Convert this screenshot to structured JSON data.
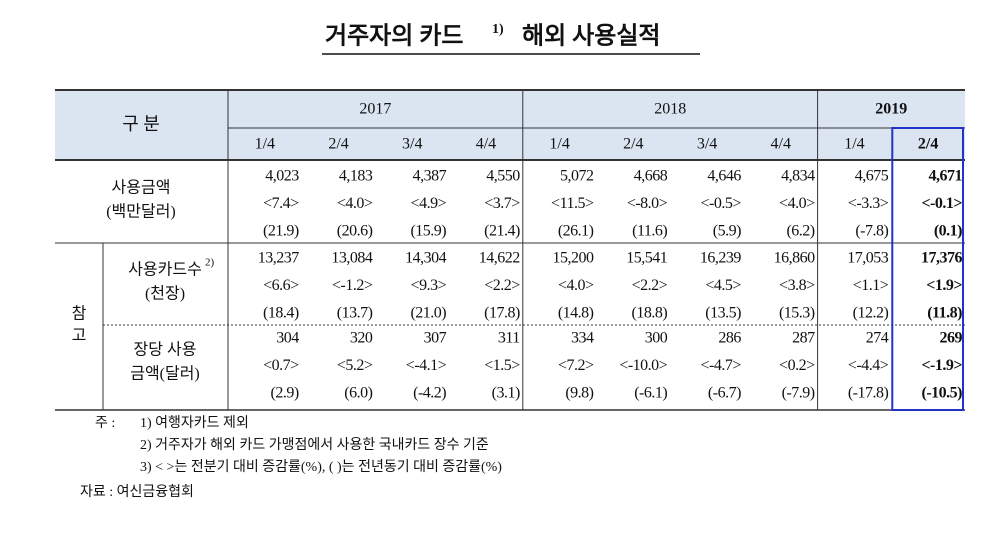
{
  "header": {
    "title": "거주자의 카드",
    "title_sup": "1)",
    "title_rest": "해외 사용실적"
  },
  "table": {
    "corner": "구 분",
    "years": [
      "2017",
      "2018",
      "2019"
    ],
    "quarters": [
      "1/4",
      "2/4",
      "3/4",
      "4/4",
      "1/4",
      "2/4",
      "3/4",
      "4/4",
      "1/4",
      "2/4"
    ],
    "ref_label": [
      "참",
      "고"
    ],
    "rows": [
      {
        "label": [
          "사용금액",
          "(백만달러)"
        ],
        "label_sup": null,
        "values": [
          "4,023",
          "4,183",
          "4,387",
          "4,550",
          "5,072",
          "4,668",
          "4,646",
          "4,834",
          "4,675",
          "4,671"
        ],
        "qoq": [
          "<7.4>",
          "<4.0>",
          "<4.9>",
          "<3.7>",
          "<11.5>",
          "<-8.0>",
          "<-0.5>",
          "<4.0>",
          "<-3.3>",
          "<-0.1>"
        ],
        "yoy": [
          "(21.9)",
          "(20.6)",
          "(15.9)",
          "(21.4)",
          "(26.1)",
          "(11.6)",
          "(5.9)",
          "(6.2)",
          "(-7.8)",
          "(0.1)"
        ]
      },
      {
        "label": [
          "사용카드수",
          "(천장)"
        ],
        "label_sup": "2)",
        "values": [
          "13,237",
          "13,084",
          "14,304",
          "14,622",
          "15,200",
          "15,541",
          "16,239",
          "16,860",
          "17,053",
          "17,376"
        ],
        "qoq": [
          "<6.6>",
          "<-1.2>",
          "<9.3>",
          "<2.2>",
          "<4.0>",
          "<2.2>",
          "<4.5>",
          "<3.8>",
          "<1.1>",
          "<1.9>"
        ],
        "yoy": [
          "(18.4)",
          "(13.7)",
          "(21.0)",
          "(17.8)",
          "(14.8)",
          "(18.8)",
          "(13.5)",
          "(15.3)",
          "(12.2)",
          "(11.8)"
        ]
      },
      {
        "label": [
          "장당 사용",
          "금액(달러)"
        ],
        "label_sup": null,
        "values": [
          "304",
          "320",
          "307",
          "311",
          "334",
          "300",
          "286",
          "287",
          "274",
          "269"
        ],
        "qoq": [
          "<0.7>",
          "<5.2>",
          "<-4.1>",
          "<1.5>",
          "<7.2>",
          "<-10.0>",
          "<-4.7>",
          "<0.2>",
          "<-4.4>",
          "<-1.9>"
        ],
        "yoy": [
          "(2.9)",
          "(6.0)",
          "(-4.2)",
          "(3.1)",
          "(9.8)",
          "(-6.1)",
          "(-6.7)",
          "(-7.9)",
          "(-17.8)",
          "(-10.5)"
        ]
      }
    ]
  },
  "notes": {
    "prefix": "주 :",
    "items": [
      "1) 여행자카드 제외",
      "2) 거주자가 해외 카드 가맹점에서 사용한 국내카드 장수 기준",
      "3) <    >는 전분기 대비 증감률(%), (    )는 전년동기 대비 증감률(%)"
    ],
    "source": "자료 : 여신금융협회"
  }
}
